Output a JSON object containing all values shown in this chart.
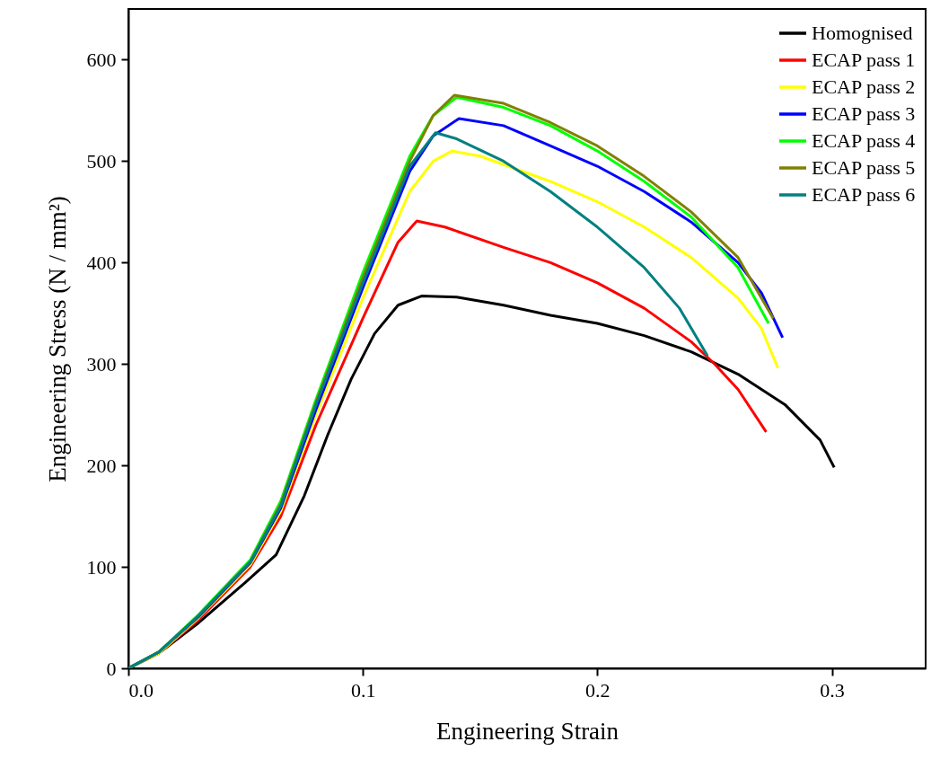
{
  "chart_data": {
    "type": "line",
    "xlabel": "Engineering Strain",
    "ylabel": "Engineering Stress (N / mm²)",
    "xlim": [
      0,
      0.34
    ],
    "ylim": [
      0,
      650
    ],
    "xticks": [
      {
        "value": 0,
        "label": "0.0"
      },
      0.1,
      0.2,
      0.3
    ],
    "yticks": [
      0,
      100,
      200,
      300,
      400,
      500,
      600
    ],
    "grid": false,
    "legend": "top right",
    "marker": "none",
    "line_style": "solid",
    "series": [
      {
        "name": "Homognised",
        "color": "#000000",
        "x": [
          0,
          0.013,
          0.03,
          0.05,
          0.063,
          0.075,
          0.085,
          0.095,
          0.105,
          0.115,
          0.125,
          0.14,
          0.16,
          0.18,
          0.2,
          0.22,
          0.24,
          0.26,
          0.28,
          0.295,
          0.301
        ],
        "values": [
          0,
          15,
          45,
          85,
          112,
          170,
          230,
          285,
          330,
          358,
          367,
          366,
          358,
          348,
          340,
          328,
          312,
          290,
          260,
          225,
          198
        ]
      },
      {
        "name": "ECAP pass 1",
        "color": "#ff0000",
        "x": [
          0,
          0.013,
          0.03,
          0.052,
          0.065,
          0.08,
          0.1,
          0.115,
          0.123,
          0.135,
          0.16,
          0.18,
          0.2,
          0.22,
          0.24,
          0.25,
          0.26,
          0.272
        ],
        "values": [
          0,
          15,
          48,
          100,
          150,
          240,
          345,
          420,
          441,
          435,
          415,
          400,
          380,
          355,
          322,
          300,
          275,
          233
        ]
      },
      {
        "name": "ECAP pass 2",
        "color": "#ffff00",
        "x": [
          0,
          0.013,
          0.03,
          0.052,
          0.065,
          0.08,
          0.1,
          0.12,
          0.13,
          0.138,
          0.15,
          0.18,
          0.2,
          0.22,
          0.24,
          0.26,
          0.27,
          0.277
        ],
        "values": [
          0,
          15,
          50,
          102,
          155,
          250,
          365,
          470,
          500,
          510,
          505,
          480,
          460,
          435,
          405,
          365,
          335,
          296
        ]
      },
      {
        "name": "ECAP pass 3",
        "color": "#0000ff",
        "x": [
          0,
          0.013,
          0.03,
          0.052,
          0.065,
          0.08,
          0.1,
          0.12,
          0.13,
          0.141,
          0.16,
          0.18,
          0.2,
          0.22,
          0.24,
          0.26,
          0.27,
          0.279
        ],
        "values": [
          0,
          16,
          51,
          104,
          158,
          255,
          375,
          490,
          525,
          542,
          535,
          515,
          495,
          470,
          440,
          400,
          370,
          326
        ]
      },
      {
        "name": "ECAP pass 4",
        "color": "#00ff00",
        "x": [
          0,
          0.013,
          0.03,
          0.052,
          0.065,
          0.08,
          0.1,
          0.12,
          0.13,
          0.14,
          0.16,
          0.18,
          0.2,
          0.22,
          0.24,
          0.26,
          0.273
        ],
        "values": [
          0,
          16,
          53,
          107,
          165,
          265,
          390,
          505,
          545,
          563,
          553,
          535,
          510,
          480,
          445,
          395,
          340
        ]
      },
      {
        "name": "ECAP pass 5",
        "color": "#808000",
        "x": [
          0,
          0.013,
          0.03,
          0.052,
          0.065,
          0.08,
          0.1,
          0.12,
          0.13,
          0.139,
          0.16,
          0.18,
          0.2,
          0.22,
          0.24,
          0.26,
          0.275
        ],
        "values": [
          0,
          16,
          52,
          105,
          162,
          262,
          385,
          500,
          545,
          565,
          557,
          538,
          515,
          485,
          450,
          405,
          345
        ]
      },
      {
        "name": "ECAP pass 6",
        "color": "#008080",
        "x": [
          0,
          0.013,
          0.03,
          0.052,
          0.065,
          0.08,
          0.1,
          0.12,
          0.131,
          0.14,
          0.16,
          0.18,
          0.2,
          0.22,
          0.235,
          0.247
        ],
        "values": [
          0,
          16,
          52,
          105,
          160,
          260,
          380,
          495,
          528,
          522,
          500,
          470,
          435,
          395,
          355,
          308
        ]
      }
    ]
  }
}
